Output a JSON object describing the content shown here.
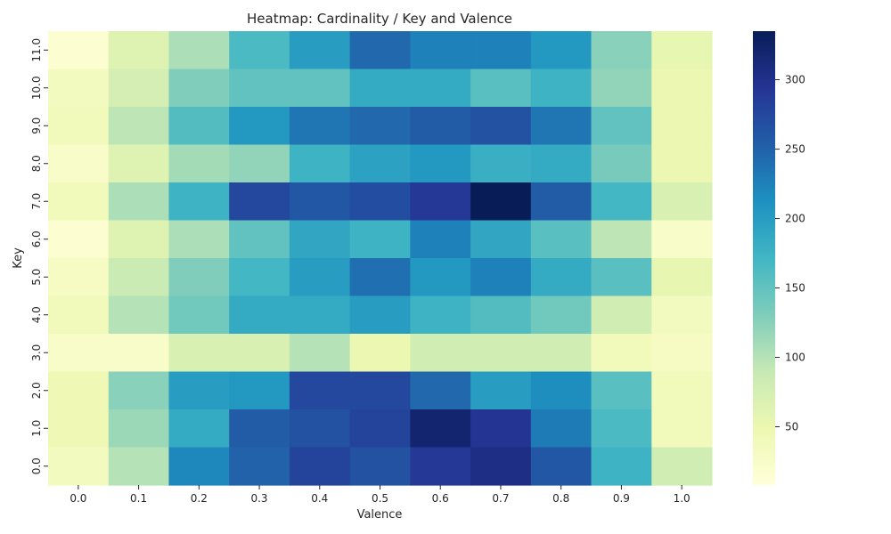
{
  "chart_data": {
    "type": "heatmap",
    "title": "Heatmap: Cardinality / Key and Valence",
    "xlabel": "Valence",
    "ylabel": "Key",
    "x": [
      "0.0",
      "0.1",
      "0.2",
      "0.3",
      "0.4",
      "0.5",
      "0.6",
      "0.7",
      "0.8",
      "0.9",
      "1.0"
    ],
    "y": [
      "11.0",
      "10.0",
      "9.0",
      "8.0",
      "7.0",
      "6.0",
      "5.0",
      "4.0",
      "3.0",
      "2.0",
      "1.0",
      "0.0"
    ],
    "values": [
      [
        15,
        65,
        105,
        165,
        200,
        245,
        225,
        225,
        205,
        125,
        55
      ],
      [
        35,
        75,
        130,
        150,
        150,
        185,
        185,
        155,
        175,
        120,
        50
      ],
      [
        40,
        95,
        160,
        205,
        235,
        245,
        255,
        265,
        235,
        150,
        50
      ],
      [
        25,
        65,
        110,
        120,
        175,
        195,
        205,
        180,
        185,
        135,
        50
      ],
      [
        40,
        105,
        175,
        275,
        260,
        270,
        290,
        335,
        255,
        170,
        70
      ],
      [
        15,
        65,
        105,
        150,
        190,
        175,
        225,
        190,
        155,
        95,
        25
      ],
      [
        30,
        85,
        130,
        170,
        200,
        240,
        205,
        225,
        185,
        155,
        55
      ],
      [
        40,
        100,
        140,
        185,
        185,
        200,
        175,
        160,
        140,
        80,
        35
      ],
      [
        25,
        25,
        70,
        70,
        100,
        50,
        80,
        80,
        80,
        40,
        30
      ],
      [
        45,
        125,
        200,
        205,
        275,
        275,
        245,
        200,
        215,
        155,
        40
      ],
      [
        45,
        115,
        185,
        255,
        265,
        280,
        320,
        295,
        230,
        165,
        40
      ],
      [
        35,
        100,
        220,
        250,
        280,
        265,
        290,
        305,
        260,
        175,
        80
      ]
    ],
    "colorbar": {
      "min": 8,
      "max": 335,
      "ticks": [
        50,
        100,
        150,
        200,
        250,
        300
      ],
      "colormap": "YlGnBu"
    },
    "grid": false
  }
}
